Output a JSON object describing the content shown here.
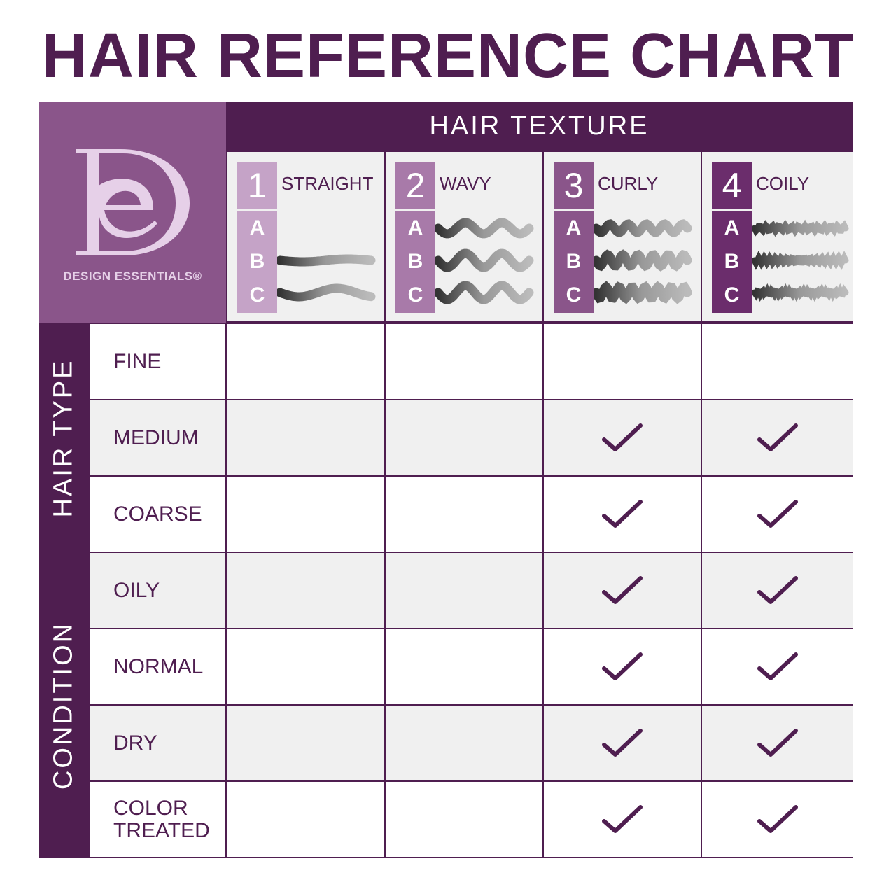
{
  "title": "HAIR REFERENCE CHART",
  "brand": {
    "name": "DESIGN ESSENTIALS®",
    "logo_letters": "DE"
  },
  "colors": {
    "dark": "#4f1e50",
    "logo_bg": "#8a558a",
    "type1": "#c5a3c7",
    "type2": "#a87aa9",
    "type3": "#8a558a",
    "type4": "#6b2d6c",
    "alt_row": "#f0f0f0"
  },
  "texture_header": "HAIR TEXTURE",
  "textures": [
    {
      "num": "1",
      "name": "STRAIGHT",
      "subtypes": [
        "A",
        "B",
        "C"
      ]
    },
    {
      "num": "2",
      "name": "WAVY",
      "subtypes": [
        "A",
        "B",
        "C"
      ]
    },
    {
      "num": "3",
      "name": "CURLY",
      "subtypes": [
        "A",
        "B",
        "C"
      ]
    },
    {
      "num": "4",
      "name": "COILY",
      "subtypes": [
        "A",
        "B",
        "C"
      ]
    }
  ],
  "groups": [
    {
      "label": "HAIR TYPE"
    },
    {
      "label": "CONDITION"
    }
  ],
  "rows": [
    {
      "label": "FINE",
      "checks": [
        false,
        false,
        false,
        false
      ]
    },
    {
      "label": "MEDIUM",
      "checks": [
        false,
        false,
        true,
        true
      ]
    },
    {
      "label": "COARSE",
      "checks": [
        false,
        false,
        true,
        true
      ]
    },
    {
      "label": "OILY",
      "checks": [
        false,
        false,
        true,
        true
      ]
    },
    {
      "label": "NORMAL",
      "checks": [
        false,
        false,
        true,
        true
      ]
    },
    {
      "label": "DRY",
      "checks": [
        false,
        false,
        true,
        true
      ]
    },
    {
      "label": "COLOR TREATED",
      "checks": [
        false,
        false,
        true,
        true
      ]
    }
  ]
}
